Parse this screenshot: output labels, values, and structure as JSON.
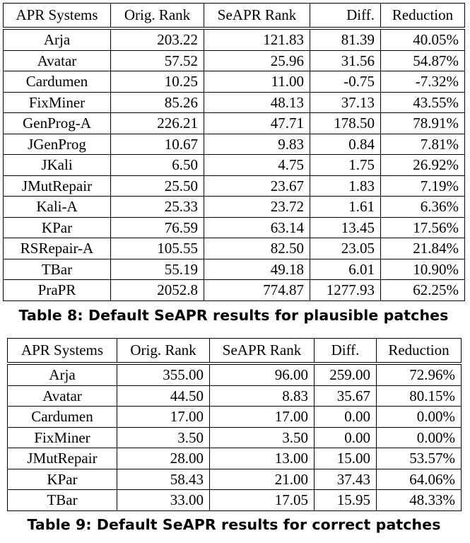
{
  "table8": {
    "headers": [
      "APR Systems",
      "Orig. Rank",
      "SeAPR Rank",
      "Diff.",
      "Reduction"
    ],
    "rows": [
      [
        "Arja",
        "203.22",
        "121.83",
        "81.39",
        "40.05%"
      ],
      [
        "Avatar",
        "57.52",
        "25.96",
        "31.56",
        "54.87%"
      ],
      [
        "Cardumen",
        "10.25",
        "11.00",
        "-0.75",
        "-7.32%"
      ],
      [
        "FixMiner",
        "85.26",
        "48.13",
        "37.13",
        "43.55%"
      ],
      [
        "GenProg-A",
        "226.21",
        "47.71",
        "178.50",
        "78.91%"
      ],
      [
        "JGenProg",
        "10.67",
        "9.83",
        "0.84",
        "7.81%"
      ],
      [
        "JKali",
        "6.50",
        "4.75",
        "1.75",
        "26.92%"
      ],
      [
        "JMutRepair",
        "25.50",
        "23.67",
        "1.83",
        "7.19%"
      ],
      [
        "Kali-A",
        "25.33",
        "23.72",
        "1.61",
        "6.36%"
      ],
      [
        "KPar",
        "76.59",
        "63.14",
        "13.45",
        "17.56%"
      ],
      [
        "RSRepair-A",
        "105.55",
        "82.50",
        "23.05",
        "21.84%"
      ],
      [
        "TBar",
        "55.19",
        "49.18",
        "6.01",
        "10.90%"
      ],
      [
        "PraPR",
        "2052.8",
        "774.87",
        "1277.93",
        "62.25%"
      ]
    ],
    "caption": "Table 8: Default SeAPR results for plausible patches"
  },
  "table9": {
    "headers": [
      "APR Systems",
      "Orig. Rank",
      "SeAPR Rank",
      "Diff.",
      "Reduction"
    ],
    "rows": [
      [
        "Arja",
        "355.00",
        "96.00",
        "259.00",
        "72.96%"
      ],
      [
        "Avatar",
        "44.50",
        "8.83",
        "35.67",
        "80.15%"
      ],
      [
        "Cardumen",
        "17.00",
        "17.00",
        "0.00",
        "0.00%"
      ],
      [
        "FixMiner",
        "3.50",
        "3.50",
        "0.00",
        "0.00%"
      ],
      [
        "JMutRepair",
        "28.00",
        "13.00",
        "15.00",
        "53.57%"
      ],
      [
        "KPar",
        "58.43",
        "21.00",
        "37.43",
        "64.06%"
      ],
      [
        "TBar",
        "33.00",
        "17.05",
        "15.95",
        "48.33%"
      ]
    ],
    "caption": "Table 9: Default SeAPR results for correct patches"
  }
}
